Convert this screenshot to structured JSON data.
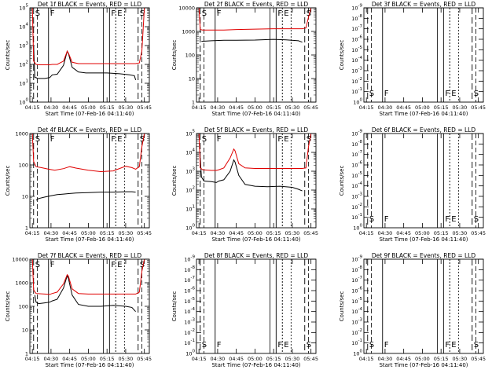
{
  "x_ticks": [
    "04:15",
    "04:30",
    "04:45",
    "05:00",
    "05:15",
    "05:30",
    "05:45"
  ],
  "x_label": "Start Time (07-Feb-16 04:11:40)",
  "y_label": "Counts/sec",
  "chart_data": [
    {
      "type": "line",
      "title": "Det 1f BLACK = Events, RED = LLD",
      "y_scale": "log",
      "ytick_labels": [
        "10^0",
        "10^1",
        "10^2",
        "10^3",
        "10^4",
        "10^5"
      ],
      "ylim": [
        1,
        100000
      ],
      "series": [
        {
          "name": "BLACK = Events",
          "color": "#000000",
          "x": [
            "04:16",
            "04:17",
            "04:18",
            "04:19",
            "04:25",
            "04:29",
            "04:31",
            "04:35",
            "04:40",
            "04:43",
            "04:44",
            "04:47",
            "04:52",
            "04:58",
            "05:05",
            "05:15",
            "05:25",
            "05:33",
            "05:37",
            "05:38"
          ],
          "y": [
            1000,
            20,
            20,
            18,
            18,
            20,
            28,
            30,
            90,
            500,
            380,
            70,
            40,
            35,
            35,
            35,
            32,
            28,
            25,
            15
          ]
        },
        {
          "name": "RED = LLD",
          "color": "#e00000",
          "x": [
            "04:15",
            "04:16",
            "04:18",
            "04:20",
            "04:25",
            "04:29",
            "04:31",
            "04:35",
            "04:40",
            "04:43",
            "04:44",
            "04:47",
            "04:52",
            "05:00",
            "05:10",
            "05:20",
            "05:30",
            "05:38",
            "05:41",
            "05:43",
            "05:45"
          ],
          "y": [
            100000,
            150,
            100,
            95,
            95,
            95,
            100,
            100,
            150,
            500,
            400,
            130,
            110,
            110,
            110,
            110,
            110,
            110,
            120,
            500,
            100000
          ]
        }
      ],
      "markers": [
        {
          "x": "04:16",
          "label": "S"
        },
        {
          "x": "04:28",
          "label": "F"
        },
        {
          "x": "05:17",
          "label": "F"
        },
        {
          "x": "05:22",
          "label": "E"
        },
        {
          "x": "05:40",
          "label": "S"
        }
      ]
    },
    {
      "type": "line",
      "title": "Det 2f BLACK = Events, RED = LLD",
      "y_scale": "log",
      "ytick_labels": [
        "1",
        "10",
        "100",
        "1000",
        "10000"
      ],
      "ylim": [
        1,
        10000
      ],
      "series": [
        {
          "name": "BLACK = Events",
          "color": "#000000",
          "x": [
            "04:17",
            "04:25",
            "04:35",
            "04:45",
            "05:00",
            "05:15",
            "05:25",
            "05:35",
            "05:38"
          ],
          "y": [
            380,
            400,
            420,
            420,
            430,
            460,
            440,
            400,
            350
          ]
        },
        {
          "name": "RED = LLD",
          "color": "#e00000",
          "x": [
            "04:15",
            "04:16",
            "04:18",
            "04:25",
            "04:35",
            "04:45",
            "05:00",
            "05:15",
            "05:30",
            "05:38",
            "05:41",
            "05:43",
            "05:45"
          ],
          "y": [
            10000,
            1200,
            1150,
            1150,
            1150,
            1200,
            1250,
            1300,
            1300,
            1300,
            1400,
            4000,
            10000
          ]
        }
      ],
      "markers": [
        {
          "x": "04:16",
          "label": "S"
        },
        {
          "x": "04:28",
          "label": "F"
        },
        {
          "x": "05:17",
          "label": "F"
        },
        {
          "x": "05:22",
          "label": "E"
        },
        {
          "x": "05:40",
          "label": "S"
        }
      ]
    },
    {
      "type": "line",
      "title": "Det 3f BLACK = Events, RED = LLD",
      "y_scale": "log",
      "ytick_labels": [
        "10^0",
        "10^-1",
        "10^-2",
        "10^-3",
        "10^-4",
        "10^-5",
        "10^-6",
        "10^-7",
        "10^-8",
        "10^-9"
      ],
      "ylim": [
        0,
        9
      ],
      "series": [],
      "markers": [
        {
          "x": "04:16",
          "label": "S"
        },
        {
          "x": "04:28",
          "label": "F"
        },
        {
          "x": "05:17",
          "label": "F"
        },
        {
          "x": "05:22",
          "label": "E"
        },
        {
          "x": "05:40",
          "label": "S"
        }
      ]
    },
    {
      "type": "line",
      "title": "Det 4f BLACK = Events, RED = LLD",
      "y_scale": "log",
      "ytick_labels": [
        "1",
        "10",
        "100",
        "1000"
      ],
      "ylim": [
        1,
        5000
      ],
      "series": [
        {
          "name": "BLACK = Events",
          "color": "#000000",
          "x": [
            "04:18",
            "04:20",
            "04:25",
            "04:30",
            "04:35",
            "04:40",
            "04:45",
            "04:50",
            "05:00",
            "05:10",
            "05:20",
            "05:30",
            "05:35",
            "05:38"
          ],
          "y": [
            12,
            14,
            16,
            18,
            20,
            21,
            22,
            23,
            24,
            25,
            25,
            26,
            26,
            25
          ]
        },
        {
          "name": "RED = LLD",
          "color": "#e00000",
          "x": [
            "04:15",
            "04:16",
            "04:18",
            "04:22",
            "04:28",
            "04:33",
            "04:40",
            "04:45",
            "04:50",
            "05:00",
            "05:10",
            "05:20",
            "05:26",
            "05:30",
            "05:35",
            "05:38",
            "05:41",
            "05:43",
            "05:45"
          ],
          "y": [
            5000,
            400,
            250,
            230,
            200,
            180,
            210,
            250,
            220,
            180,
            160,
            170,
            220,
            260,
            230,
            200,
            250,
            1500,
            5000
          ]
        }
      ],
      "markers": [
        {
          "x": "04:16",
          "label": "S"
        },
        {
          "x": "04:28",
          "label": "F"
        },
        {
          "x": "05:17",
          "label": "F"
        },
        {
          "x": "05:22",
          "label": "E"
        },
        {
          "x": "05:40",
          "label": "S"
        }
      ]
    },
    {
      "type": "line",
      "title": "Det 5f BLACK = Events, RED = LLD",
      "y_scale": "log",
      "ytick_labels": [
        "10^0",
        "10^1",
        "10^2",
        "10^3",
        "10^4",
        "10^5"
      ],
      "ylim": [
        1,
        100000
      ],
      "series": [
        {
          "name": "BLACK = Events",
          "color": "#000000",
          "x": [
            "04:16",
            "04:17",
            "04:19",
            "04:25",
            "04:29",
            "04:31",
            "04:35",
            "04:40",
            "04:43",
            "04:44",
            "04:47",
            "04:52",
            "05:00",
            "05:10",
            "05:20",
            "05:30",
            "05:35",
            "05:38"
          ],
          "y": [
            5000,
            500,
            300,
            280,
            250,
            300,
            350,
            1000,
            4000,
            3000,
            600,
            200,
            160,
            150,
            160,
            140,
            110,
            90
          ]
        },
        {
          "name": "RED = LLD",
          "color": "#e00000",
          "x": [
            "04:15",
            "04:16",
            "04:18",
            "04:25",
            "04:29",
            "04:31",
            "04:35",
            "04:40",
            "04:43",
            "04:44",
            "04:47",
            "04:52",
            "05:00",
            "05:10",
            "05:20",
            "05:30",
            "05:38",
            "05:41",
            "05:43",
            "05:45"
          ],
          "y": [
            100000,
            1500,
            1200,
            1100,
            1100,
            1200,
            1500,
            5000,
            15000,
            12000,
            2500,
            1500,
            1400,
            1400,
            1400,
            1400,
            1400,
            1500,
            20000,
            100000
          ]
        }
      ],
      "markers": [
        {
          "x": "04:16",
          "label": "S"
        },
        {
          "x": "04:28",
          "label": "F"
        },
        {
          "x": "05:17",
          "label": "F"
        },
        {
          "x": "05:22",
          "label": "E"
        },
        {
          "x": "05:40",
          "label": "S"
        }
      ]
    },
    {
      "type": "line",
      "title": "Det 6f BLACK = Events, RED = LLD",
      "y_scale": "log",
      "ytick_labels": [
        "10^0",
        "10^-1",
        "10^-2",
        "10^-3",
        "10^-4",
        "10^-5",
        "10^-6",
        "10^-7",
        "10^-8",
        "10^-9"
      ],
      "ylim": [
        0,
        9
      ],
      "series": [],
      "markers": [
        {
          "x": "04:16",
          "label": "S"
        },
        {
          "x": "04:28",
          "label": "F"
        },
        {
          "x": "05:17",
          "label": "F"
        },
        {
          "x": "05:22",
          "label": "E"
        },
        {
          "x": "05:40",
          "label": "S"
        }
      ]
    },
    {
      "type": "line",
      "title": "Det 7f BLACK = Events, RED = LLD",
      "y_scale": "log",
      "ytick_labels": [
        "1",
        "10",
        "100",
        "1000",
        "10000"
      ],
      "ylim": [
        1,
        10000
      ],
      "series": [
        {
          "name": "BLACK = Events",
          "color": "#000000",
          "x": [
            "04:17",
            "04:18",
            "04:20",
            "04:25",
            "04:29",
            "04:31",
            "04:35",
            "04:40",
            "04:43",
            "04:44",
            "04:47",
            "04:52",
            "05:00",
            "05:10",
            "05:20",
            "05:30",
            "05:35",
            "05:38"
          ],
          "y": [
            300,
            150,
            130,
            140,
            150,
            170,
            200,
            600,
            2000,
            1500,
            300,
            120,
            100,
            100,
            110,
            100,
            90,
            60
          ]
        },
        {
          "name": "RED = LLD",
          "color": "#e00000",
          "x": [
            "04:15",
            "04:16",
            "04:18",
            "04:25",
            "04:29",
            "04:31",
            "04:35",
            "04:40",
            "04:43",
            "04:44",
            "04:47",
            "04:52",
            "05:00",
            "05:10",
            "05:20",
            "05:30",
            "05:38",
            "05:41",
            "05:43",
            "05:45"
          ],
          "y": [
            10000,
            500,
            350,
            330,
            320,
            350,
            400,
            900,
            2200,
            1900,
            550,
            350,
            330,
            330,
            330,
            330,
            330,
            400,
            3000,
            10000
          ]
        }
      ],
      "markers": [
        {
          "x": "04:16",
          "label": "S"
        },
        {
          "x": "04:28",
          "label": "F"
        },
        {
          "x": "05:17",
          "label": "F"
        },
        {
          "x": "05:22",
          "label": "E"
        },
        {
          "x": "05:40",
          "label": "S"
        }
      ]
    },
    {
      "type": "line",
      "title": "Det 8f BLACK = Events, RED = LLD",
      "y_scale": "log",
      "ytick_labels": [
        "10^0",
        "10^-1",
        "10^-2",
        "10^-3",
        "10^-4",
        "10^-5",
        "10^-6",
        "10^-7",
        "10^-8",
        "10^-9"
      ],
      "ylim": [
        0,
        9
      ],
      "series": [],
      "markers": [
        {
          "x": "04:16",
          "label": "S"
        },
        {
          "x": "04:28",
          "label": "F"
        },
        {
          "x": "05:17",
          "label": "F"
        },
        {
          "x": "05:22",
          "label": "E"
        },
        {
          "x": "05:40",
          "label": "S"
        }
      ]
    },
    {
      "type": "line",
      "title": "Det 9f BLACK = Events, RED = LLD",
      "y_scale": "log",
      "ytick_labels": [
        "10^0",
        "10^-1",
        "10^-2",
        "10^-3",
        "10^-4",
        "10^-5",
        "10^-6",
        "10^-7",
        "10^-8",
        "10^-9"
      ],
      "ylim": [
        0,
        9
      ],
      "series": [],
      "markers": [
        {
          "x": "04:16",
          "label": "S"
        },
        {
          "x": "04:28",
          "label": "F"
        },
        {
          "x": "05:17",
          "label": "F"
        },
        {
          "x": "05:22",
          "label": "E"
        },
        {
          "x": "05:40",
          "label": "S"
        }
      ]
    }
  ]
}
